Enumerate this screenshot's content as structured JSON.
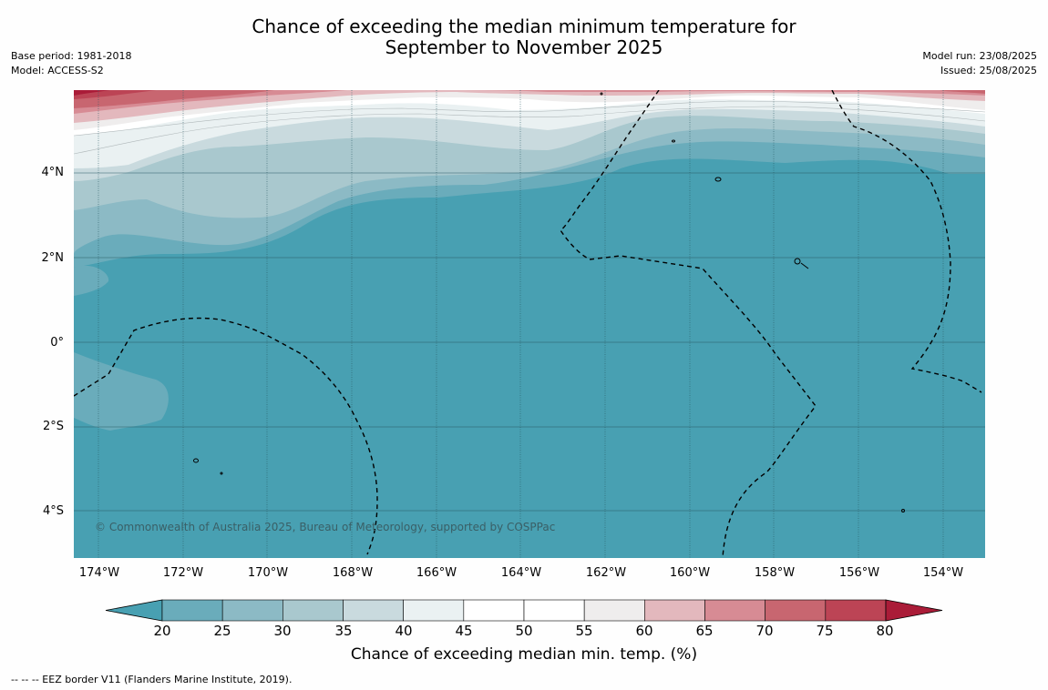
{
  "title": "Chance of exceeding the median minimum temperature for",
  "title_line2": "September to November 2025",
  "meta_left": {
    "base_period": "Base period: 1981-2018",
    "model": "Model: ACCESS-S2"
  },
  "meta_right": {
    "model_run": "Model run: 23/08/2025",
    "issued": "Issued: 25/08/2025"
  },
  "lat_labels": [
    "4°N",
    "2°N",
    "0°",
    "2°S",
    "4°S"
  ],
  "lon_labels": [
    "174°W",
    "172°W",
    "170°W",
    "168°W",
    "166°W",
    "164°W",
    "162°W",
    "160°W",
    "158°W",
    "156°W",
    "154°W"
  ],
  "credit": "© Commonwealth of Australia 2025, Bureau of Meteorology, supported by COSPPac",
  "colorbar": {
    "title": "Chance of exceeding median min. temp. (%)",
    "ticks": [
      "20",
      "25",
      "30",
      "35",
      "40",
      "45",
      "50",
      "55",
      "60",
      "65",
      "70",
      "75",
      "80"
    ],
    "colors": [
      "#48a0b2",
      "#6aacbb",
      "#8cbac5",
      "#a9c8ce",
      "#c9dade",
      "#eaf1f2",
      "#ffffff",
      "#ffffff",
      "#efeded",
      "#e3b8bd",
      "#d78b94",
      "#c86670",
      "#bc4455",
      "#aa1c38"
    ]
  },
  "footnote": "--  --  -- EEZ border V11 (Flanders Marine Institute, 2019)."
}
